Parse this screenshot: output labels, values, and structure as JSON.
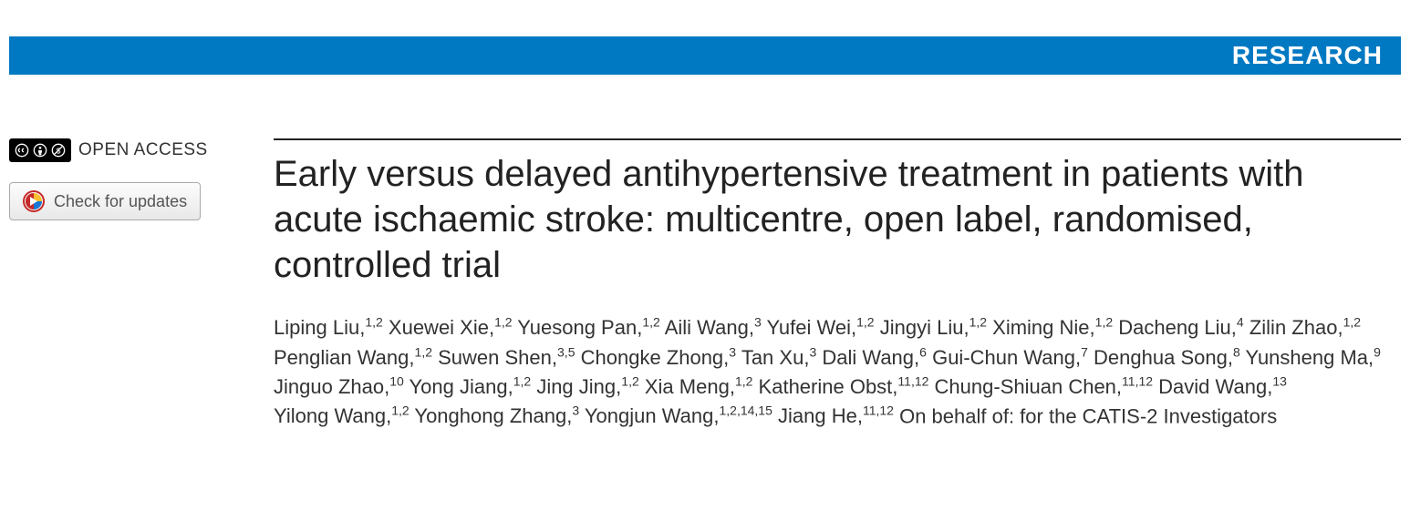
{
  "banner": {
    "label": "RESEARCH",
    "background_color": "#0079c2",
    "text_color": "#ffffff"
  },
  "sidebar": {
    "open_access_label": "OPEN ACCESS",
    "cc_icons": [
      "cc",
      "by",
      "nc"
    ],
    "updates_button_label": "Check for updates"
  },
  "article": {
    "title": "Early versus delayed antihypertensive treatment in patients with acute ischaemic stroke: multicentre, open label, randomised, controlled trial",
    "title_fontsize": 40,
    "title_color": "#222222",
    "author_fontsize": 22,
    "authors": [
      {
        "name": "Liping Liu",
        "aff": "1,2"
      },
      {
        "name": "Xuewei Xie",
        "aff": "1,2"
      },
      {
        "name": "Yuesong Pan",
        "aff": "1,2"
      },
      {
        "name": "Aili Wang",
        "aff": "3"
      },
      {
        "name": "Yufei Wei",
        "aff": "1,2"
      },
      {
        "name": "Jingyi Liu",
        "aff": "1,2"
      },
      {
        "name": "Ximing Nie",
        "aff": "1,2"
      },
      {
        "name": "Dacheng Liu",
        "aff": "4"
      },
      {
        "name": "Zilin Zhao",
        "aff": "1,2"
      },
      {
        "name": "Penglian Wang",
        "aff": "1,2"
      },
      {
        "name": "Suwen Shen",
        "aff": "3,5"
      },
      {
        "name": "Chongke Zhong",
        "aff": "3"
      },
      {
        "name": "Tan Xu",
        "aff": "3"
      },
      {
        "name": "Dali Wang",
        "aff": "6"
      },
      {
        "name": "Gui-Chun Wang",
        "aff": "7"
      },
      {
        "name": "Denghua Song",
        "aff": "8"
      },
      {
        "name": "Yunsheng Ma",
        "aff": "9"
      },
      {
        "name": "Jinguo Zhao",
        "aff": "10"
      },
      {
        "name": "Yong Jiang",
        "aff": "1,2"
      },
      {
        "name": "Jing Jing",
        "aff": "1,2"
      },
      {
        "name": "Xia Meng",
        "aff": "1,2"
      },
      {
        "name": "Katherine Obst",
        "aff": "11,12"
      },
      {
        "name": "Chung-Shiuan Chen",
        "aff": "11,12"
      },
      {
        "name": "David Wang",
        "aff": "13"
      },
      {
        "name": "Yilong Wang",
        "aff": "1,2"
      },
      {
        "name": "Yonghong Zhang",
        "aff": "3"
      },
      {
        "name": "Yongjun Wang",
        "aff": "1,2,14,15"
      },
      {
        "name": "Jiang He",
        "aff": "11,12"
      }
    ],
    "on_behalf_text": "On behalf of: for the CATIS-2 Investigators"
  },
  "colors": {
    "page_background": "#ffffff",
    "rule_color": "#222222",
    "button_border": "#aaaaaa",
    "button_text": "#555555"
  }
}
